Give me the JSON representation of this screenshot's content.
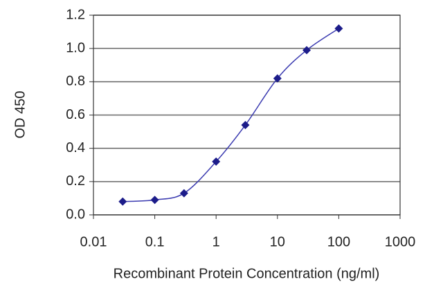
{
  "chart_data": {
    "type": "line",
    "x_label": "Recombinant Protein Concentration (ng/ml)",
    "y_label": "OD 450",
    "x_log": true,
    "grid": true,
    "color": "#1c1c8a",
    "x": [
      0.03,
      0.1,
      0.3,
      1,
      3,
      10,
      30,
      100
    ],
    "values": [
      0.08,
      0.09,
      0.13,
      0.32,
      0.54,
      0.82,
      0.99,
      1.12
    ],
    "xlim": [
      0.01,
      1000
    ],
    "xticks": [
      0.01,
      0.1,
      1,
      10,
      100,
      1000
    ],
    "ylim": [
      0,
      1.2
    ],
    "yticks": [
      {
        "value": 0,
        "label": "0.0"
      },
      0.2,
      0.4,
      0.6,
      0.8,
      {
        "value": 1,
        "label": "1.0"
      },
      1.2
    ]
  }
}
